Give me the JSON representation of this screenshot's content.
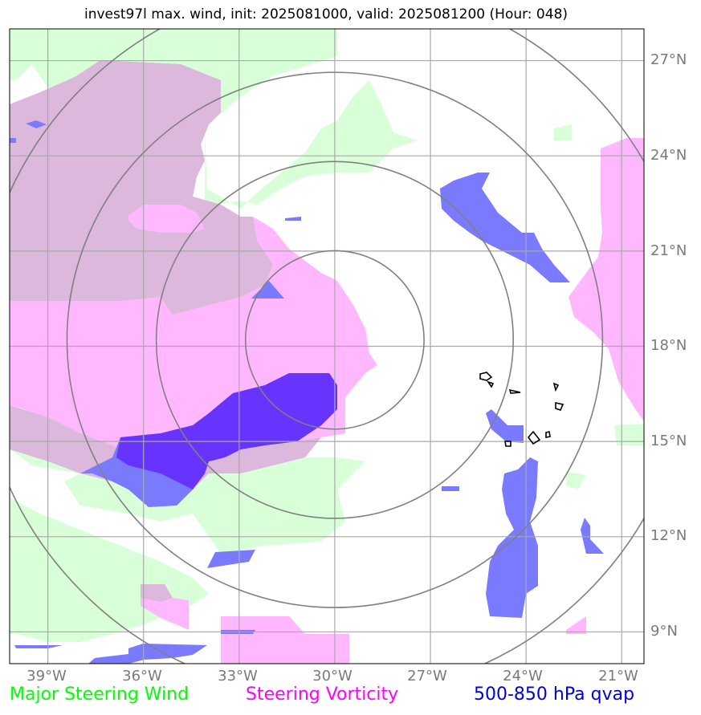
{
  "title": "invest97l max. wind, init: 2025081000, valid: 2025081200 (Hour: 048)",
  "lat_labels": [
    "27°N",
    "24°N",
    "21°N",
    "18°N",
    "15°N",
    "12°N",
    "9°N"
  ],
  "lon_labels": [
    "39°W",
    "36°W",
    "33°W",
    "30°W",
    "27°W",
    "24°W",
    "21°W"
  ],
  "legend": [
    {
      "label": "Major Steering Wind",
      "color": "#00ff00"
    },
    {
      "label": "Steering Vorticity",
      "color": "#ff00ff"
    },
    {
      "label": "500-850 hPa qvap",
      "color": "#0000dd"
    }
  ],
  "map": {
    "center": {
      "lon": -30.0,
      "lat": 18.2
    },
    "extent": {
      "lon": [
        -40.2,
        -20.3
      ],
      "lat": [
        8.0,
        28.0
      ]
    },
    "grid_lats": [
      27,
      24,
      21,
      18,
      15,
      12,
      9
    ],
    "grid_lons": [
      -39,
      -36,
      -33,
      -30,
      -27,
      -24,
      -21
    ],
    "range_rings_deg": [
      2.8,
      5.6,
      8.4,
      11.2
    ],
    "colors": {
      "wind": "#d9ffd9",
      "vorticity": "#ffb8ff",
      "vorticity_overlap": "#dcb8dc",
      "qvap": "#7a7aff",
      "qvap_dark": "#6633ff",
      "grid": "#a8a8a8",
      "ring": "#808080"
    }
  }
}
